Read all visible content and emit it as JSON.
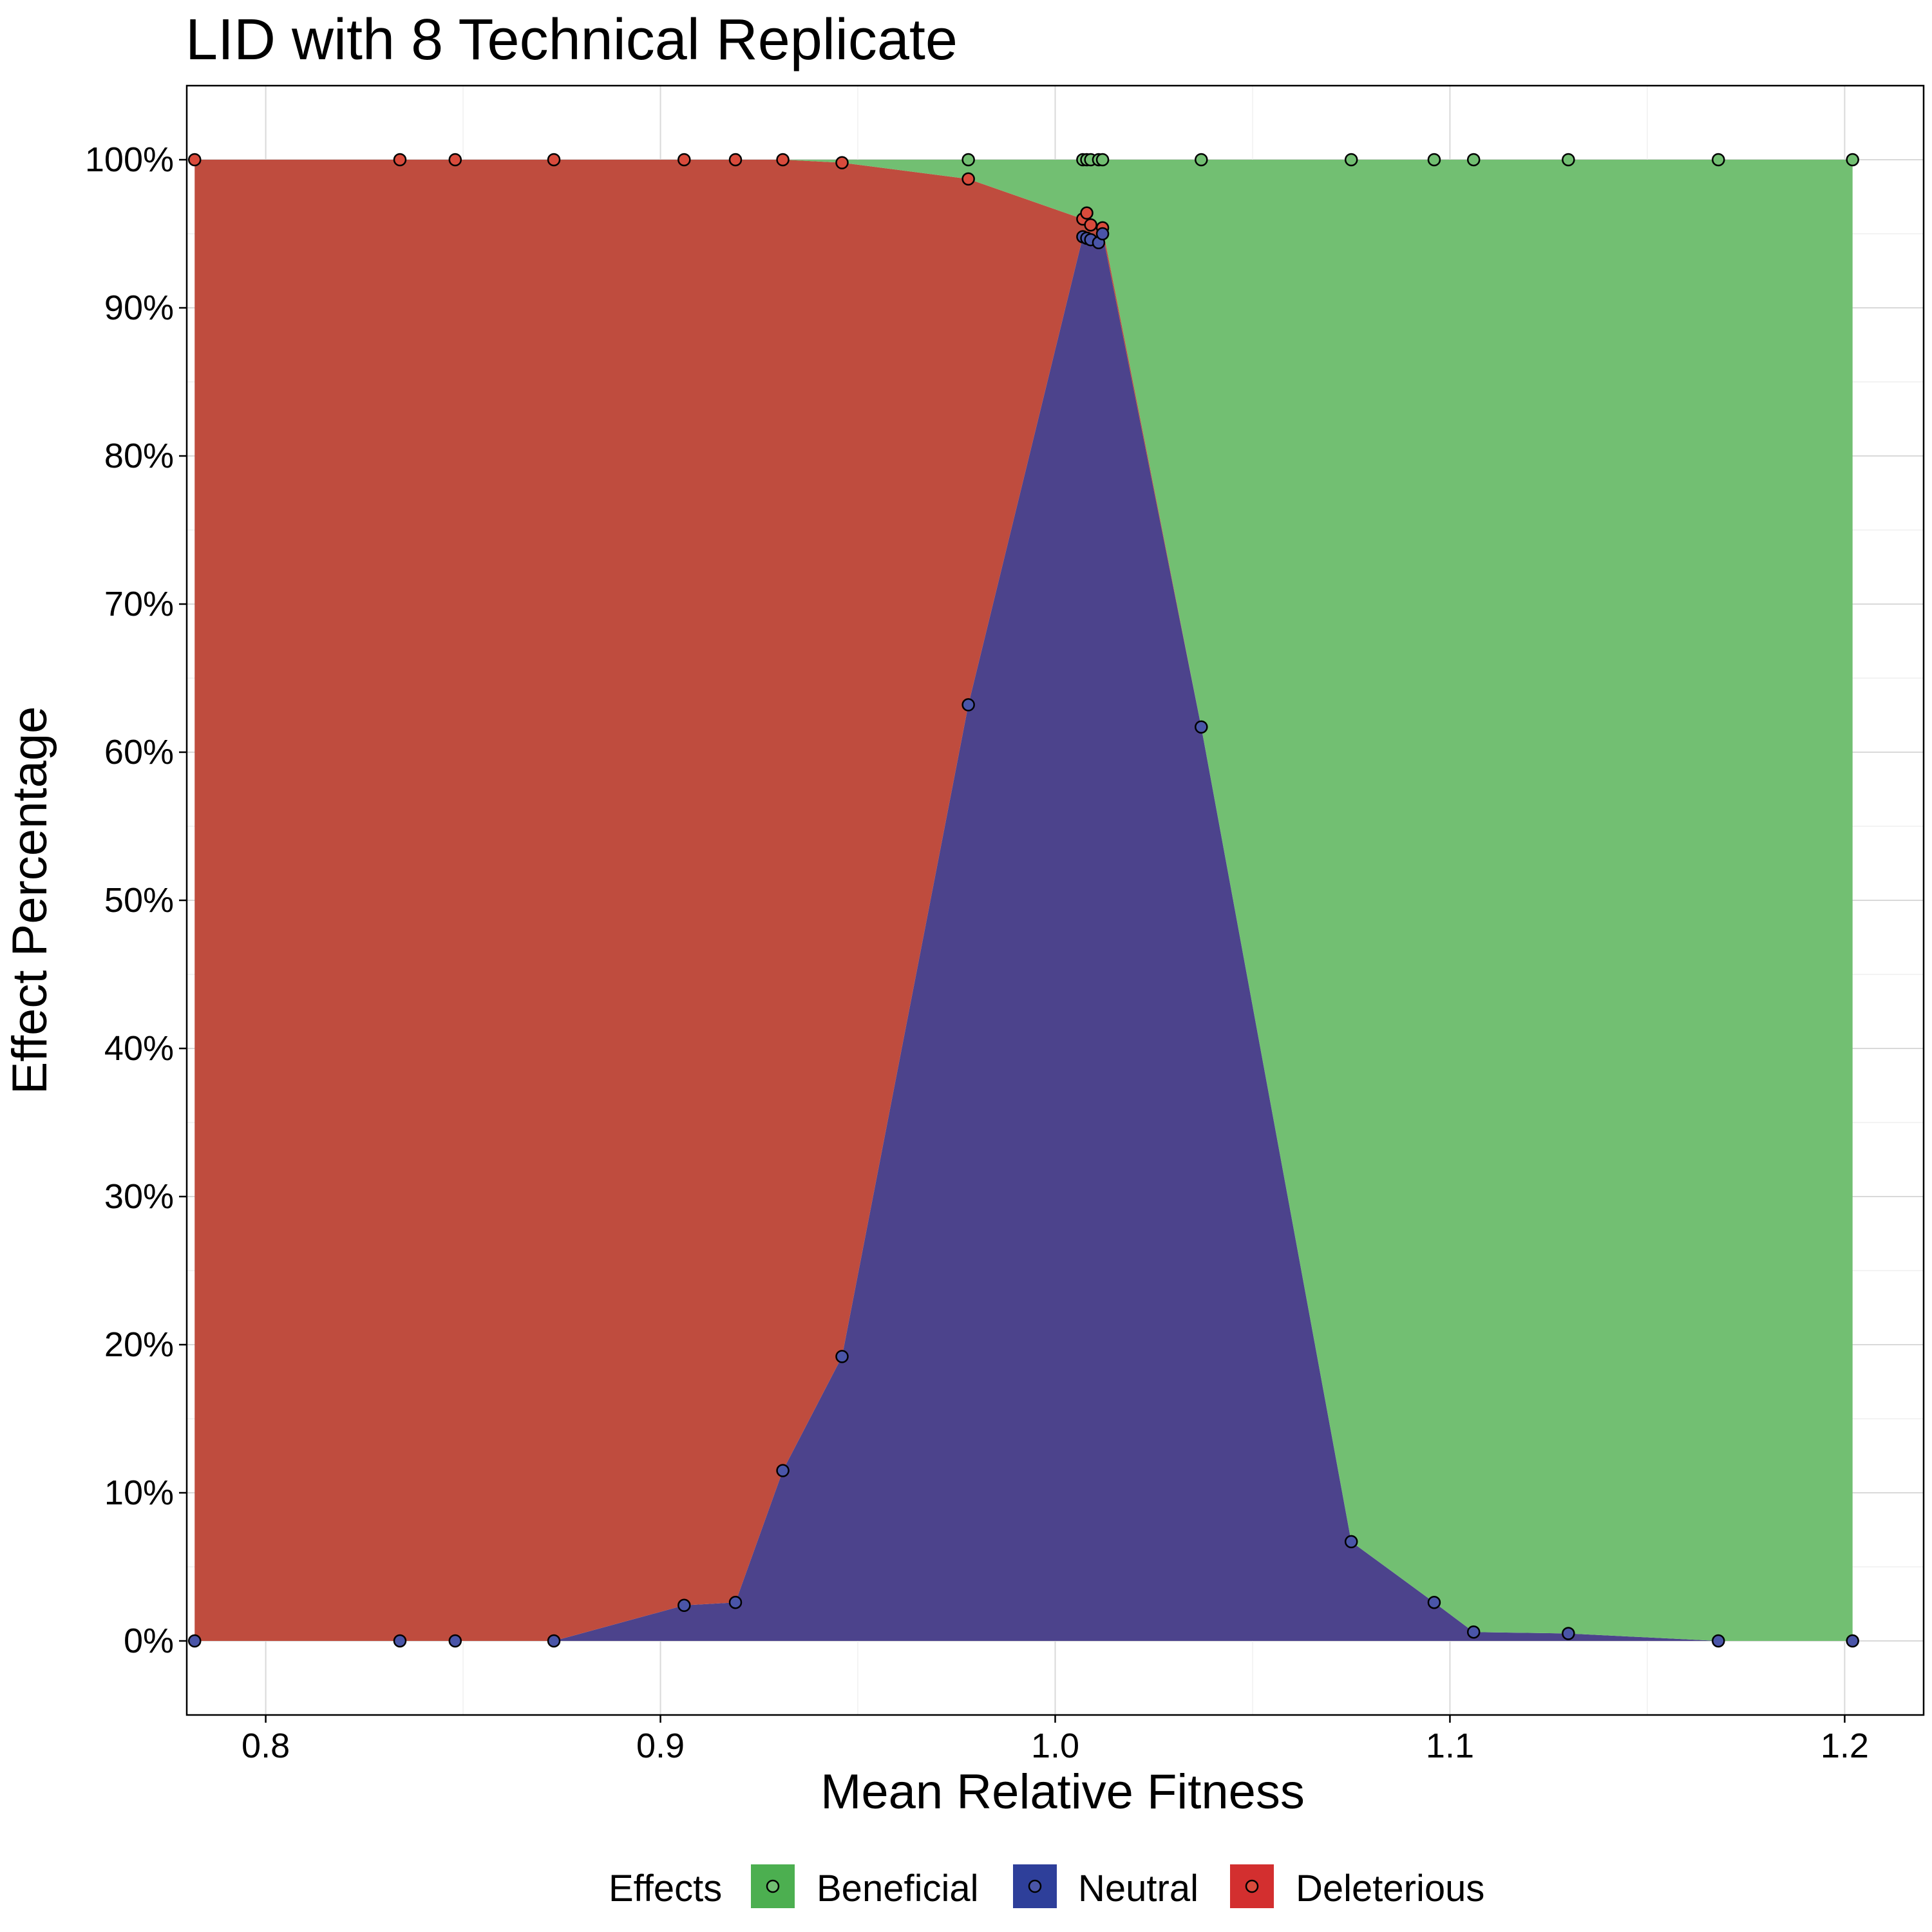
{
  "chart_data": {
    "type": "area",
    "title": "LID with 8 Technical Replicate",
    "xlabel": "Mean Relative Fitness",
    "ylabel": "Effect Percentage",
    "xlim": [
      0.78,
      1.22
    ],
    "ylim": [
      -5,
      105
    ],
    "x_ticks": [
      0.8,
      0.9,
      1.0,
      1.1,
      1.2
    ],
    "x_tick_labels": [
      "0.8",
      "0.9",
      "1.0",
      "1.1",
      "1.2"
    ],
    "y_ticks": [
      0,
      10,
      20,
      30,
      40,
      50,
      60,
      70,
      80,
      90,
      100
    ],
    "y_tick_labels": [
      "0%",
      "10%",
      "20%",
      "30%",
      "40%",
      "50%",
      "60%",
      "70%",
      "80%",
      "90%",
      "100%"
    ],
    "grid": true,
    "legend": {
      "position": "bottom",
      "title": "Effects",
      "entries": [
        "Beneficial",
        "Neutral",
        "Deleterious"
      ]
    },
    "colors": {
      "beneficial_fill": "#72bf72",
      "neutral_fill": "#4c438c",
      "deleterious_fill": "#bf4c3e",
      "beneficial_point": "#72bf72",
      "neutral_point": "#4a55a8",
      "deleterious_point": "#d94b3c",
      "legend_beneficial": "#4caf50",
      "legend_neutral": "#2e3f9a",
      "legend_deleterious": "#d32f2f"
    },
    "x": [
      0.782,
      0.834,
      0.848,
      0.873,
      0.906,
      0.919,
      0.931,
      0.946,
      0.978,
      1.007,
      1.008,
      1.009,
      1.011,
      1.012,
      1.037,
      1.075,
      1.096,
      1.106,
      1.13,
      1.168,
      1.202
    ],
    "series": [
      {
        "name": "Neutral",
        "values": [
          0,
          0,
          0,
          0,
          2.4,
          2.6,
          11.5,
          19.2,
          63.2,
          94.8,
          94.7,
          94.6,
          94.4,
          95.0,
          61.7,
          6.7,
          2.6,
          0.6,
          0.5,
          0,
          0
        ]
      },
      {
        "name": "Deleterious",
        "values": [
          100,
          100,
          100,
          100,
          97.6,
          97.4,
          88.5,
          80.6,
          35.5,
          1.2,
          1.7,
          1.0,
          0.8,
          0.4,
          0,
          0,
          0,
          0,
          0,
          0,
          0
        ]
      },
      {
        "name": "Beneficial",
        "values": [
          0,
          0,
          0,
          0,
          0,
          0,
          0,
          0.2,
          1.3,
          4.0,
          3.6,
          4.4,
          4.8,
          4.6,
          38.3,
          93.3,
          97.4,
          99.4,
          99.5,
          100,
          100
        ]
      }
    ],
    "points": {
      "Beneficial": [
        [
          0.978,
          100
        ],
        [
          1.007,
          100
        ],
        [
          1.008,
          100
        ],
        [
          1.009,
          100
        ],
        [
          1.011,
          100
        ],
        [
          1.012,
          100
        ],
        [
          1.037,
          100
        ],
        [
          1.075,
          100
        ],
        [
          1.096,
          100
        ],
        [
          1.106,
          100
        ],
        [
          1.13,
          100
        ],
        [
          1.168,
          100
        ],
        [
          1.202,
          100
        ]
      ],
      "Deleterious": [
        [
          0.782,
          100
        ],
        [
          0.834,
          100
        ],
        [
          0.848,
          100
        ],
        [
          0.873,
          100
        ],
        [
          0.906,
          100
        ],
        [
          0.919,
          100
        ],
        [
          0.931,
          100
        ],
        [
          0.946,
          99.8
        ],
        [
          0.978,
          98.7
        ],
        [
          1.007,
          96.0
        ],
        [
          1.008,
          96.4
        ],
        [
          1.009,
          95.6
        ],
        [
          1.012,
          95.4
        ]
      ],
      "Neutral": [
        [
          0.782,
          0
        ],
        [
          0.834,
          0
        ],
        [
          0.848,
          0
        ],
        [
          0.873,
          0
        ],
        [
          0.906,
          2.4
        ],
        [
          0.919,
          2.6
        ],
        [
          0.931,
          11.5
        ],
        [
          0.946,
          19.2
        ],
        [
          0.978,
          63.2
        ],
        [
          1.007,
          94.8
        ],
        [
          1.008,
          94.7
        ],
        [
          1.009,
          94.6
        ],
        [
          1.011,
          94.4
        ],
        [
          1.012,
          95.0
        ],
        [
          1.037,
          61.7
        ],
        [
          1.075,
          6.7
        ],
        [
          1.096,
          2.6
        ],
        [
          1.106,
          0.6
        ],
        [
          1.13,
          0.5
        ],
        [
          1.168,
          0
        ],
        [
          1.202,
          0
        ]
      ]
    }
  }
}
